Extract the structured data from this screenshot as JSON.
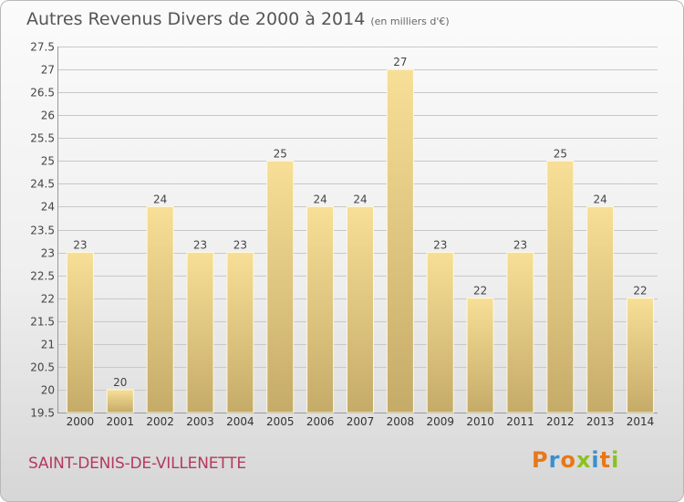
{
  "header": {
    "title": "Autres Revenus Divers de 2000 à 2014",
    "unit": "(en milliers d'€)"
  },
  "footer": {
    "commune": "SAINT-DENIS-DE-VILLENETTE",
    "logo_letters": [
      "P",
      "r",
      "o",
      "x",
      "i",
      "t",
      "i"
    ]
  },
  "colors": {
    "bar_top": "#f7df97",
    "bar_bottom": "#c5ab68",
    "grid": "#c8c8c8",
    "commune": "#b43a5e",
    "logo": [
      "#e87817",
      "#3a8fd0",
      "#e87817",
      "#8cc21e",
      "#3a8fd0",
      "#e87817",
      "#8cc21e"
    ]
  },
  "chart_data": {
    "type": "bar",
    "categories": [
      "2000",
      "2001",
      "2002",
      "2003",
      "2004",
      "2005",
      "2006",
      "2007",
      "2008",
      "2009",
      "2010",
      "2011",
      "2012",
      "2013",
      "2014"
    ],
    "values": [
      23,
      20,
      24,
      23,
      23,
      25,
      24,
      24,
      27,
      23,
      22,
      23,
      25,
      24,
      22
    ],
    "data_labels": [
      "23",
      "20",
      "24",
      "23",
      "23",
      "25",
      "24",
      "24",
      "27",
      "23",
      "22",
      "23",
      "25",
      "24",
      "22"
    ],
    "yticks": [
      "19.5",
      "20",
      "20.5",
      "21",
      "21.5",
      "22",
      "22.5",
      "23",
      "23.5",
      "24",
      "24.5",
      "25",
      "25.5",
      "26",
      "26.5",
      "27",
      "27.5"
    ],
    "ylim": [
      19.5,
      27.5
    ],
    "grid": true
  }
}
